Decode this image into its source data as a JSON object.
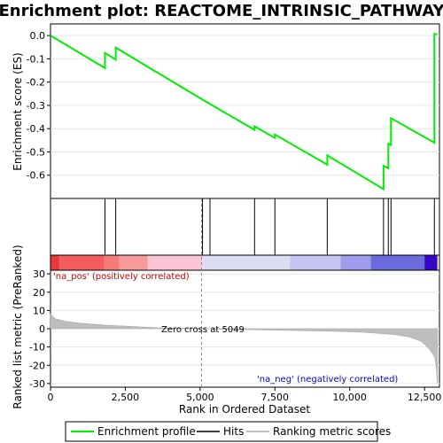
{
  "chart_data": {
    "type": "line",
    "title": "Enrichment plot: REACTOME_INTRINSIC_PATHWAY",
    "xlabel": "Rank in Ordered Dataset",
    "es_ylabel": "Enrichment score (ES)",
    "metric_ylabel": "Ranked list metric (PreRanked)",
    "xlim": [
      0,
      13000
    ],
    "es_ylim": [
      -0.7,
      0.05
    ],
    "metric_ylim": [
      -32,
      32
    ],
    "x_ticks": [
      0,
      2500,
      5000,
      7500,
      10000,
      12500
    ],
    "x_tick_labels": [
      "0",
      "2,500",
      "5,000",
      "7,500",
      "10,000",
      "12,500"
    ],
    "es_ticks": [
      0.0,
      -0.1,
      -0.2,
      -0.3,
      -0.4,
      -0.5,
      -0.6
    ],
    "es_tick_labels": [
      "0.0",
      "-0.1",
      "-0.2",
      "-0.3",
      "-0.4",
      "-0.5",
      "-0.6"
    ],
    "metric_ticks": [
      30,
      20,
      10,
      0,
      -10,
      -20,
      -30
    ],
    "metric_tick_labels": [
      "30",
      "20",
      "10",
      "0",
      "-10",
      "-20",
      "-30"
    ],
    "hits": [
      1820,
      2180,
      5080,
      5330,
      6820,
      7500,
      9250,
      11130,
      11290,
      11380,
      12830
    ],
    "es_profile": {
      "x": [
        0,
        1820,
        1820,
        2180,
        2180,
        5080,
        5080,
        5330,
        5330,
        6820,
        6820,
        7500,
        7500,
        9250,
        9250,
        11130,
        11130,
        11290,
        11290,
        11380,
        11380,
        12830,
        12830,
        12930
      ],
      "y": [
        0.0,
        -0.14,
        -0.075,
        -0.103,
        -0.052,
        -0.275,
        -0.275,
        -0.294,
        -0.294,
        -0.405,
        -0.39,
        -0.44,
        -0.425,
        -0.555,
        -0.515,
        -0.66,
        -0.56,
        -0.57,
        -0.465,
        -0.47,
        -0.355,
        -0.46,
        0.007,
        0.005
      ]
    },
    "metric_profile": {
      "x": [
        0,
        150,
        500,
        1000,
        1800,
        2500,
        3500,
        5049,
        6500,
        8000,
        9500,
        10500,
        11500,
        12000,
        12400,
        12600,
        12750,
        12850,
        12900,
        12930
      ],
      "y": [
        8.0,
        5.5,
        4.0,
        3.0,
        2.0,
        1.4,
        0.6,
        0.0,
        -0.5,
        -0.9,
        -1.4,
        -2.0,
        -3.2,
        -4.5,
        -7.0,
        -10.0,
        -13.0,
        -16.0,
        -22.0,
        -30.0
      ]
    },
    "ranking_segments": [
      {
        "from": 0,
        "to": 300,
        "color": "#ec3a3a"
      },
      {
        "from": 300,
        "to": 1800,
        "color": "#f25c5c"
      },
      {
        "from": 1800,
        "to": 2300,
        "color": "#f57b7b"
      },
      {
        "from": 2300,
        "to": 3250,
        "color": "#f89a9a"
      },
      {
        "from": 3250,
        "to": 5049,
        "color": "#fbc4d4"
      },
      {
        "from": 5049,
        "to": 8000,
        "color": "#dcdcf5"
      },
      {
        "from": 8000,
        "to": 9700,
        "color": "#c4c4f0"
      },
      {
        "from": 9700,
        "to": 10700,
        "color": "#9d9deb"
      },
      {
        "from": 10700,
        "to": 12500,
        "color": "#6b6bdc"
      },
      {
        "from": 12500,
        "to": 12930,
        "color": "#3a06c6"
      }
    ],
    "annotations": {
      "pos_label": "'na_pos' (positively correlated)",
      "neg_label": "'na_neg' (negatively correlated)",
      "zero_cross": "Zero cross at 5049",
      "zero_cross_x": 5049
    },
    "legend": {
      "items": [
        "Enrichment profile",
        "Hits",
        "Ranking metric scores"
      ],
      "placement": "bottom"
    },
    "colors": {
      "es_line": "#00ee00",
      "hit_line": "#000000",
      "metric_fill": "#bebebe",
      "pos_text": "#cc0000",
      "neg_text": "#0000cc"
    }
  }
}
